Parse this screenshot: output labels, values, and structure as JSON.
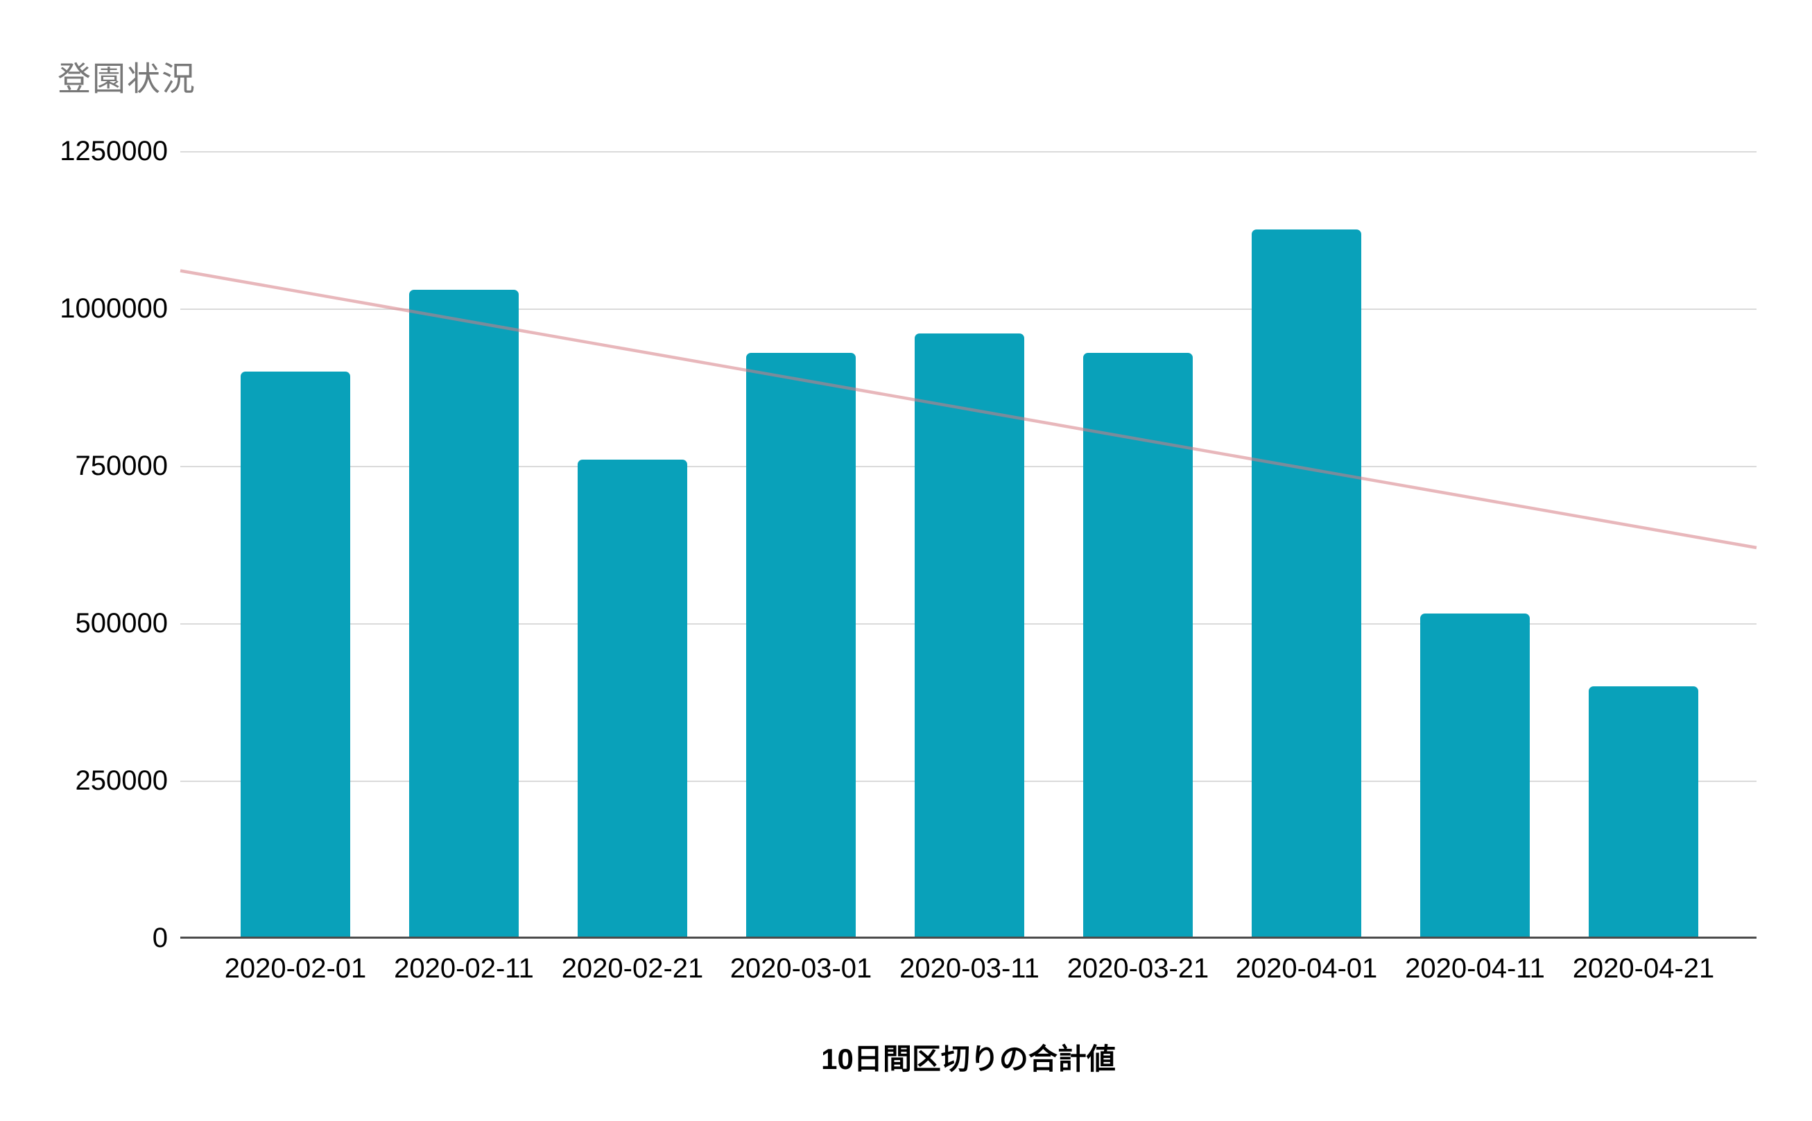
{
  "chart_data": {
    "type": "bar",
    "title": "登園状況",
    "xlabel": "10日間区切りの合計値",
    "ylabel": "",
    "categories": [
      "2020-02-01",
      "2020-02-11",
      "2020-02-21",
      "2020-03-01",
      "2020-03-11",
      "2020-03-21",
      "2020-04-01",
      "2020-04-11",
      "2020-04-21"
    ],
    "values": [
      900000,
      1030000,
      760000,
      930000,
      960000,
      930000,
      1125000,
      515000,
      400000
    ],
    "yticks": [
      0,
      250000,
      500000,
      750000,
      1000000,
      1250000
    ],
    "ylim": [
      0,
      1250000
    ],
    "grid": true,
    "legend": "none",
    "bar_color": "#09A1BA",
    "trendline": {
      "start": 1060000,
      "end": 620000,
      "color": "#D57C84",
      "opacity": 0.55
    },
    "gridline_color": "#DADADA",
    "baseline_color": "#4B4B4B",
    "title_color": "#787878",
    "label_color": "#000000"
  }
}
